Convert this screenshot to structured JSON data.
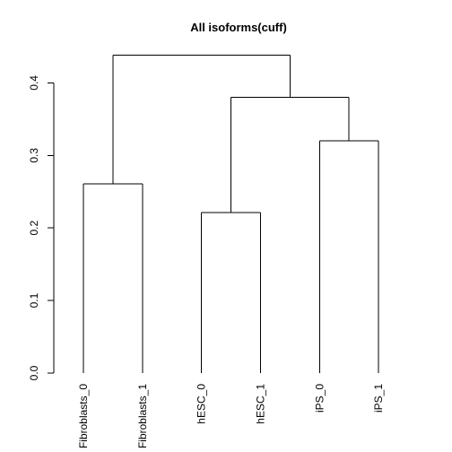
{
  "chart_data": {
    "type": "dendrogram",
    "title": "All isoforms(cuff)",
    "xlabel": "",
    "ylabel": "",
    "ylim": [
      0,
      0.44
    ],
    "y_ticks": [
      0.0,
      0.1,
      0.2,
      0.3,
      0.4
    ],
    "y_tick_labels": [
      "0.0",
      "0.1",
      "0.2",
      "0.3",
      "0.4"
    ],
    "leaves": [
      "Fibroblasts_0",
      "Fibroblasts_1",
      "hESC_0",
      "hESC_1",
      "iPS_0",
      "iPS_1"
    ],
    "merges": [
      {
        "id": "m1",
        "left": "leaf:0",
        "right": "leaf:1",
        "height": 0.261
      },
      {
        "id": "m2",
        "left": "leaf:2",
        "right": "leaf:3",
        "height": 0.221
      },
      {
        "id": "m3",
        "left": "leaf:4",
        "right": "leaf:5",
        "height": 0.32
      },
      {
        "id": "m4",
        "left": "node:m2",
        "right": "node:m3",
        "height": 0.38
      },
      {
        "id": "m5",
        "left": "node:m1",
        "right": "node:m4",
        "height": 0.438
      }
    ],
    "line_color": "#000000",
    "grid": false,
    "legend": "none"
  }
}
